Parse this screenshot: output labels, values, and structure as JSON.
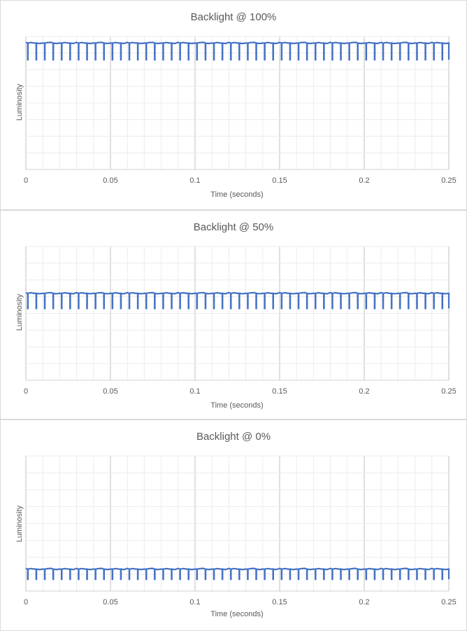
{
  "chart_data": [
    {
      "type": "line",
      "title": "Backlight @ 100%",
      "xlabel": "Time (seconds)",
      "ylabel": "Luminosity",
      "xlim": [
        0,
        0.25
      ],
      "x_ticks": [
        "0",
        "0.05",
        "0.1",
        "0.15",
        "0.2",
        "0.25"
      ],
      "ylim": [
        0,
        8
      ],
      "grid": true,
      "baseline": 7.6,
      "dip_level": 6.6,
      "pulse_period": 0.005,
      "pulse_count": 50,
      "color": "#4472c4"
    },
    {
      "type": "line",
      "title": "Backlight @ 50%",
      "xlabel": "Time (seconds)",
      "ylabel": "Luminosity",
      "xlim": [
        0,
        0.25
      ],
      "x_ticks": [
        "0",
        "0.05",
        "0.1",
        "0.15",
        "0.2",
        "0.25"
      ],
      "ylim": [
        0,
        8
      ],
      "grid": true,
      "baseline": 5.2,
      "dip_level": 4.3,
      "pulse_period": 0.005,
      "pulse_count": 50,
      "color": "#4472c4"
    },
    {
      "type": "line",
      "title": "Backlight @ 0%",
      "xlabel": "Time (seconds)",
      "ylabel": "Luminosity",
      "xlim": [
        0,
        0.25
      ],
      "x_ticks": [
        "0",
        "0.05",
        "0.1",
        "0.15",
        "0.2",
        "0.25"
      ],
      "ylim": [
        0,
        8
      ],
      "grid": true,
      "baseline": 1.3,
      "dip_level": 0.7,
      "pulse_period": 0.005,
      "pulse_count": 50,
      "color": "#4472c4"
    }
  ]
}
